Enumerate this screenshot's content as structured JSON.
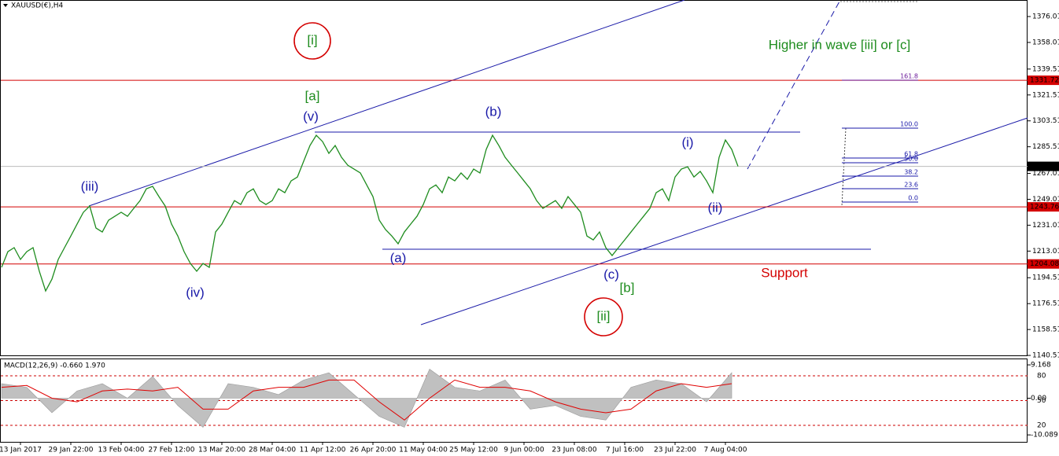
{
  "chart_data": [
    {
      "type": "line",
      "title": "XAUUSD(€),H4",
      "color": "#1e8c1e",
      "categories": [
        null,
        null,
        null,
        "13 Jan 2017",
        null,
        null,
        null,
        null,
        null,
        null,
        null,
        "29 Jan 22:00",
        null,
        null,
        null,
        null,
        null,
        null,
        null,
        "13 Feb 04:00",
        null,
        null,
        null,
        null,
        null,
        null,
        null,
        "27 Feb 12:00",
        null,
        null,
        null,
        null,
        null,
        null,
        null,
        "13 Mar 20:00",
        null,
        null,
        null,
        null,
        null,
        null,
        null,
        "28 Mar 04:00",
        null,
        null,
        null,
        null,
        null,
        null,
        null,
        "11 Apr 12:00",
        null,
        null,
        null,
        null,
        null,
        null,
        null,
        "26 Apr 20:00",
        null,
        null,
        null,
        null,
        null,
        null,
        null,
        "11 May 04:00",
        null,
        null,
        null,
        null,
        null,
        null,
        null,
        "25 May 12:00",
        null,
        null,
        null,
        null,
        null,
        null,
        null,
        "9 Jun 00:00",
        null,
        null,
        null,
        null,
        null,
        null,
        null,
        "23 Jun 08:00",
        null,
        null,
        null,
        null,
        null,
        null,
        null,
        "7 Jul 16:00",
        null,
        null,
        null,
        null,
        null,
        null,
        null,
        "23 Jul 22:00",
        null,
        null,
        null,
        null,
        null,
        null,
        null,
        "7 Aug 04:00",
        null,
        null
      ],
      "values": [
        1201.7,
        1212.6,
        1215.4,
        1207.2,
        1212.6,
        1215.4,
        1199,
        1185.3,
        1193.5,
        1207.2,
        1215.4,
        1223.5,
        1231.8,
        1240,
        1244.3,
        1229,
        1226.3,
        1234.5,
        1237.2,
        1240,
        1237.2,
        1242.7,
        1248.1,
        1256.3,
        1258,
        1250.9,
        1244.3,
        1231.8,
        1223.5,
        1212.6,
        1204.4,
        1199,
        1204.4,
        1201.7,
        1226.3,
        1231.8,
        1240,
        1248.1,
        1245.4,
        1253.6,
        1256.3,
        1248.1,
        1245.4,
        1248.1,
        1256.3,
        1253.6,
        1261.8,
        1264.5,
        1275.5,
        1286.4,
        1293.5,
        1289.1,
        1280.9,
        1286.4,
        1278.2,
        1272.7,
        1270,
        1267.3,
        1259.1,
        1250.9,
        1234.5,
        1228,
        1223.5,
        1218.1,
        1226.3,
        1231.8,
        1237.2,
        1245.4,
        1256.3,
        1259,
        1253.6,
        1264.5,
        1261.8,
        1267.3,
        1262.9,
        1270,
        1267.3,
        1283.7,
        1293.5,
        1286.4,
        1278.2,
        1272.7,
        1267.3,
        1261.8,
        1256.3,
        1248.1,
        1242.7,
        1245.4,
        1248.1,
        1242.7,
        1250.9,
        1245.4,
        1240,
        1223.5,
        1220.8,
        1226.3,
        1215.4,
        1209.9,
        1215.4,
        1220.8,
        1226.3,
        1231.8,
        1237.2,
        1242.7,
        1253.6,
        1256.3,
        1248.1,
        1264.5,
        1270,
        1271.6,
        1264.5,
        1268.4,
        1261.8,
        1253.6,
        1278.2,
        1290.2,
        1283.7,
        1271.9
      ],
      "ylim": [
        1140,
        1387.5
      ],
      "yticks": [
        1376.01,
        1358.01,
        1339.51,
        1321.51,
        1303.51,
        1285.51,
        1267.01,
        1249.01,
        1231.01,
        1213.01,
        1194.51,
        1176.51,
        1158.51,
        1140.51
      ],
      "levels": [
        {
          "value": 1331.72,
          "color": "#d40000"
        },
        {
          "value": 1243.76,
          "color": "#d40000"
        },
        {
          "value": 1204.08,
          "color": "#d40000"
        }
      ],
      "current": {
        "value": 1271.9,
        "label": "1271.90"
      },
      "annotations": [
        {
          "text": "[i]",
          "color": "#1e8c1e"
        },
        {
          "text": "[a]",
          "color": "#1e8c1e"
        },
        {
          "text": "(v)",
          "color": "#1a1aa8"
        },
        {
          "text": "(iii)",
          "color": "#1a1aa8"
        },
        {
          "text": "(iv)",
          "color": "#1a1aa8"
        },
        {
          "text": "(a)",
          "color": "#1a1aa8"
        },
        {
          "text": "(b)",
          "color": "#1a1aa8"
        },
        {
          "text": "(c)",
          "color": "#1a1aa8"
        },
        {
          "text": "[b]",
          "color": "#1e8c1e"
        },
        {
          "text": "[ii]",
          "color": "#1e8c1e"
        },
        {
          "text": "(i)",
          "color": "#1a1aa8"
        },
        {
          "text": "(ii)",
          "color": "#1a1aa8"
        },
        {
          "text": "Higher in wave [iii] or [c]",
          "color": "#1e8c1e"
        },
        {
          "text": "Support",
          "color": "#d40000"
        }
      ],
      "fib_labels": [
        "161.8",
        "100.0",
        "61.8",
        "50.0",
        "38.2",
        "23.6",
        "0.0"
      ]
    },
    {
      "type": "macd",
      "title": "MACD(12,26,9) -0.660 1.970",
      "color": "#c0c0c0",
      "signal_color": "#e00000",
      "values": [
        4,
        3,
        -4,
        2,
        4,
        0,
        6,
        -2,
        -8,
        4,
        3,
        1,
        5,
        7,
        1,
        -5,
        -8,
        8,
        3,
        2,
        5,
        -3,
        -2,
        -5,
        -6,
        3,
        5,
        4,
        -1,
        7
      ],
      "signal": [
        3,
        3.5,
        0,
        -1,
        2,
        2.5,
        2,
        3,
        -3,
        -3,
        2,
        3,
        3,
        5,
        5,
        -1,
        -6,
        0,
        5,
        3,
        3,
        2,
        -1,
        -3,
        -4,
        -3,
        2,
        4,
        3,
        4
      ],
      "ylim": [
        -12,
        10.7
      ],
      "yticks": [
        9.168,
        {
          "value": 0,
          "label": "0.00"
        },
        -10.089
      ],
      "y2lim": [
        0,
        100
      ],
      "y2ticks": [
        80,
        50,
        20
      ]
    }
  ]
}
